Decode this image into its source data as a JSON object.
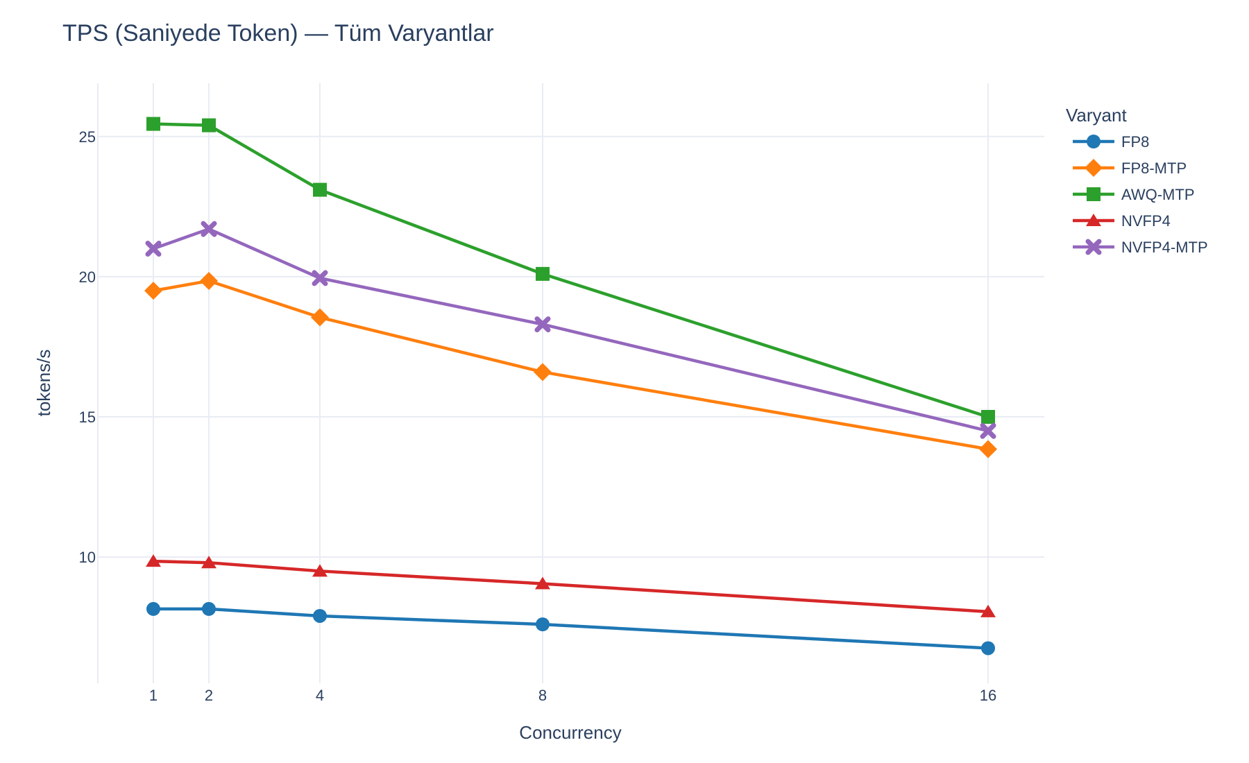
{
  "chart_data": {
    "type": "line",
    "title": "TPS (Saniyede Token) — Tüm Varyantlar",
    "xlabel": "Concurrency",
    "ylabel": "tokens/s",
    "x": [
      1,
      2,
      4,
      8,
      16
    ],
    "x_tick_labels": [
      "1",
      "2",
      "4",
      "8",
      "16"
    ],
    "y_ticks": [
      10,
      15,
      20,
      25
    ],
    "y_tick_labels": [
      "10",
      "15",
      "20",
      "25"
    ],
    "ylim": [
      5.5,
      26.9
    ],
    "grid": true,
    "legend_title": "Varyant",
    "legend_position": "top-right",
    "series": [
      {
        "name": "FP8",
        "marker": "circle",
        "color": "#1f77b4",
        "values": [
          8.15,
          8.15,
          7.9,
          7.6,
          6.75
        ]
      },
      {
        "name": "FP8-MTP",
        "marker": "diamond",
        "color": "#ff7f0e",
        "values": [
          19.5,
          19.85,
          18.55,
          16.6,
          13.85
        ]
      },
      {
        "name": "AWQ-MTP",
        "marker": "square",
        "color": "#2ca02c",
        "values": [
          25.45,
          25.4,
          23.1,
          20.1,
          15.0
        ]
      },
      {
        "name": "NVFP4",
        "marker": "triangle",
        "color": "#d62728",
        "values": [
          9.85,
          9.8,
          9.5,
          9.05,
          8.05
        ]
      },
      {
        "name": "NVFP4-MTP",
        "marker": "x",
        "color": "#9467bd",
        "values": [
          21.0,
          21.7,
          19.95,
          18.3,
          14.5
        ]
      }
    ]
  }
}
